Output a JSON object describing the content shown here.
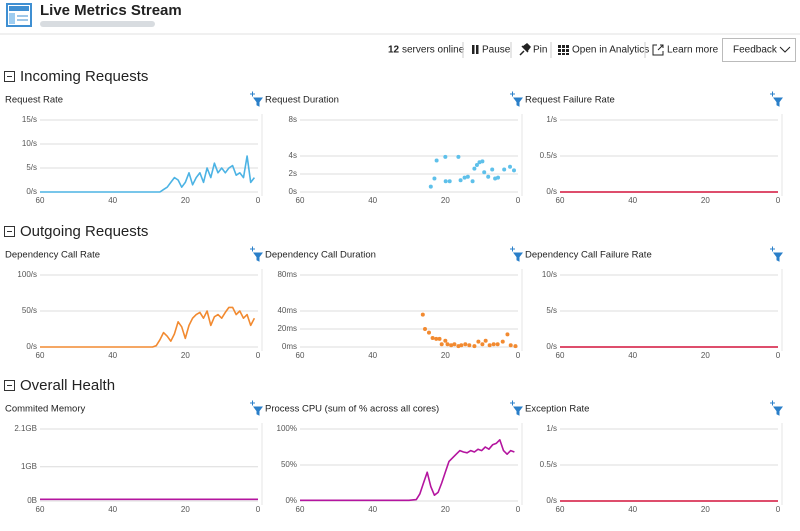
{
  "header": {
    "title": "Live Metrics Stream"
  },
  "toolbar": {
    "servers_count": "12",
    "servers_label": "servers online",
    "pause": "Pause",
    "pin": "Pin",
    "analytics": "Open in Analytics",
    "learn_more": "Learn more",
    "feedback": "Feedback"
  },
  "sections": [
    {
      "title": "Incoming Requests"
    },
    {
      "title": "Outgoing Requests"
    },
    {
      "title": "Overall Health"
    }
  ],
  "chart_data": [
    {
      "type": "line",
      "title": "Request Rate",
      "color": "#4cb3e4",
      "x": [
        60,
        27,
        26,
        25,
        24,
        23,
        22,
        21,
        20,
        19,
        18,
        17,
        16,
        15,
        14,
        13,
        12,
        11,
        10,
        9,
        8,
        7,
        6,
        5,
        4,
        3,
        2,
        1
      ],
      "values": [
        0,
        0,
        0.5,
        1,
        2,
        3,
        2.5,
        1,
        2,
        4,
        1.5,
        3,
        4,
        2,
        5,
        3,
        6,
        4,
        5,
        4,
        5,
        5.5,
        3.5,
        4,
        3,
        7.5,
        2,
        3
      ],
      "xlim": [
        60,
        0
      ],
      "xticks": [
        60,
        40,
        20,
        0
      ],
      "ylim": [
        0,
        15
      ],
      "yticks": [
        {
          "value": 0,
          "label": "0/s"
        },
        {
          "value": 5,
          "label": "5/s"
        },
        {
          "value": 10,
          "label": "10/s"
        },
        {
          "value": 15,
          "label": "15/s"
        }
      ]
    },
    {
      "type": "scatter",
      "title": "Request Duration",
      "color": "#5ec0ea",
      "x": [
        24,
        23,
        22.4,
        20,
        19.9,
        18.8,
        16.4,
        15.8,
        14.7,
        13.8,
        12.5,
        12,
        11.3,
        10.6,
        9.8,
        9.3,
        8.2,
        7.1,
        6.3,
        5.5,
        3.8,
        2.2,
        1.1
      ],
      "values": [
        0.6,
        1.5,
        3.5,
        3.9,
        1.2,
        1.2,
        3.9,
        1.3,
        1.6,
        1.7,
        1.2,
        2.6,
        3,
        3.3,
        3.4,
        2.2,
        1.7,
        2.5,
        1.5,
        1.6,
        2.5,
        2.8,
        2.4
      ],
      "xlim": [
        60,
        0
      ],
      "xticks": [
        60,
        40,
        20,
        0
      ],
      "ylim": [
        0,
        8
      ],
      "yticks": [
        {
          "value": 0,
          "label": "0s"
        },
        {
          "value": 2,
          "label": "2s"
        },
        {
          "value": 4,
          "label": "4s"
        },
        {
          "value": 8,
          "label": "8s"
        }
      ]
    },
    {
      "type": "line",
      "title": "Request Failure Rate",
      "color": "#d4143c",
      "x": [
        60,
        0
      ],
      "values": [
        0,
        0
      ],
      "xlim": [
        60,
        0
      ],
      "xticks": [
        60,
        40,
        20,
        0
      ],
      "ylim": [
        0,
        1
      ],
      "yticks": [
        {
          "value": 0,
          "label": "0/s"
        },
        {
          "value": 0.5,
          "label": "0.5/s"
        },
        {
          "value": 1,
          "label": "1/s"
        }
      ]
    },
    {
      "type": "line",
      "title": "Dependency Call Rate",
      "color": "#f28a30",
      "x": [
        60,
        29,
        28,
        27,
        26,
        25,
        24,
        23,
        22,
        21,
        20,
        19,
        18,
        17,
        16,
        15,
        14,
        13,
        12,
        11,
        10,
        9,
        8,
        7,
        6,
        5,
        4,
        3,
        2,
        1
      ],
      "values": [
        0,
        0,
        2,
        10,
        20,
        15,
        8,
        18,
        35,
        28,
        12,
        30,
        40,
        45,
        48,
        40,
        50,
        30,
        42,
        45,
        40,
        48,
        55,
        55,
        45,
        50,
        40,
        45,
        30,
        40
      ],
      "xlim": [
        60,
        0
      ],
      "xticks": [
        60,
        40,
        20,
        0
      ],
      "ylim": [
        0,
        100
      ],
      "yticks": [
        {
          "value": 0,
          "label": "0/s"
        },
        {
          "value": 50,
          "label": "50/s"
        },
        {
          "value": 100,
          "label": "100/s"
        }
      ]
    },
    {
      "type": "scatter",
      "title": "Dependency Call Duration",
      "color": "#f28a30",
      "x": [
        26.2,
        25.6,
        24.5,
        23.5,
        22.5,
        21.6,
        21,
        20,
        19.4,
        18.4,
        17.5,
        16.4,
        15.6,
        14.5,
        13.4,
        12,
        10.9,
        9.8,
        8.9,
        7.8,
        6.7,
        5.6,
        4.2,
        2.9,
        2,
        0.7
      ],
      "values": [
        36,
        20,
        16,
        10,
        9,
        9,
        3,
        7,
        3,
        2,
        3,
        1,
        2,
        3,
        2,
        1,
        6,
        3,
        7,
        2,
        3,
        3,
        6,
        14,
        2,
        1
      ],
      "xlim": [
        60,
        0
      ],
      "xticks": [
        60,
        40,
        20,
        0
      ],
      "ylim": [
        0,
        80
      ],
      "yticks": [
        {
          "value": 0,
          "label": "0ms"
        },
        {
          "value": 20,
          "label": "20ms"
        },
        {
          "value": 40,
          "label": "40ms"
        },
        {
          "value": 80,
          "label": "80ms"
        }
      ]
    },
    {
      "type": "line",
      "title": "Dependency Call Failure Rate",
      "color": "#d4143c",
      "x": [
        60,
        0
      ],
      "values": [
        0,
        0
      ],
      "xlim": [
        60,
        0
      ],
      "xticks": [
        60,
        40,
        20,
        0
      ],
      "ylim": [
        0,
        10
      ],
      "yticks": [
        {
          "value": 0,
          "label": "0/s"
        },
        {
          "value": 5,
          "label": "5/s"
        },
        {
          "value": 10,
          "label": "10/s"
        }
      ]
    },
    {
      "type": "line",
      "title": "Commited Memory",
      "color": "#b4159f",
      "x": [
        60,
        0
      ],
      "values": [
        0.05,
        0.05
      ],
      "xlim": [
        60,
        0
      ],
      "xticks": [
        60,
        40,
        20,
        0
      ],
      "ylim": [
        0,
        2.1
      ],
      "yticks": [
        {
          "value": 0,
          "label": "0B"
        },
        {
          "value": 1,
          "label": "1GB"
        },
        {
          "value": 2.1,
          "label": "2.1GB"
        }
      ]
    },
    {
      "type": "line",
      "title": "Process CPU (sum of % across all cores)",
      "color": "#b4159f",
      "x": [
        60,
        30,
        28,
        27,
        26,
        25,
        24,
        23,
        22,
        21,
        20,
        19,
        18,
        17,
        16,
        15,
        14,
        13,
        12,
        11,
        10,
        9,
        8,
        7,
        6,
        5,
        4,
        3,
        2,
        1
      ],
      "values": [
        1,
        1,
        2,
        10,
        25,
        40,
        20,
        8,
        12,
        25,
        40,
        55,
        60,
        65,
        70,
        68,
        67,
        70,
        68,
        72,
        70,
        75,
        72,
        78,
        80,
        85,
        70,
        65,
        70,
        68
      ],
      "xlim": [
        60,
        0
      ],
      "xticks": [
        60,
        40,
        20,
        0
      ],
      "ylim": [
        0,
        100
      ],
      "yticks": [
        {
          "value": 0,
          "label": "0%"
        },
        {
          "value": 50,
          "label": "50%"
        },
        {
          "value": 100,
          "label": "100%"
        }
      ]
    },
    {
      "type": "line",
      "title": "Exception Rate",
      "color": "#d4143c",
      "x": [
        60,
        0
      ],
      "values": [
        0,
        0
      ],
      "xlim": [
        60,
        0
      ],
      "xticks": [
        60,
        40,
        20,
        0
      ],
      "ylim": [
        0,
        1
      ],
      "yticks": [
        {
          "value": 0,
          "label": "0/s"
        },
        {
          "value": 0.5,
          "label": "0.5/s"
        },
        {
          "value": 1,
          "label": "1/s"
        }
      ]
    }
  ]
}
